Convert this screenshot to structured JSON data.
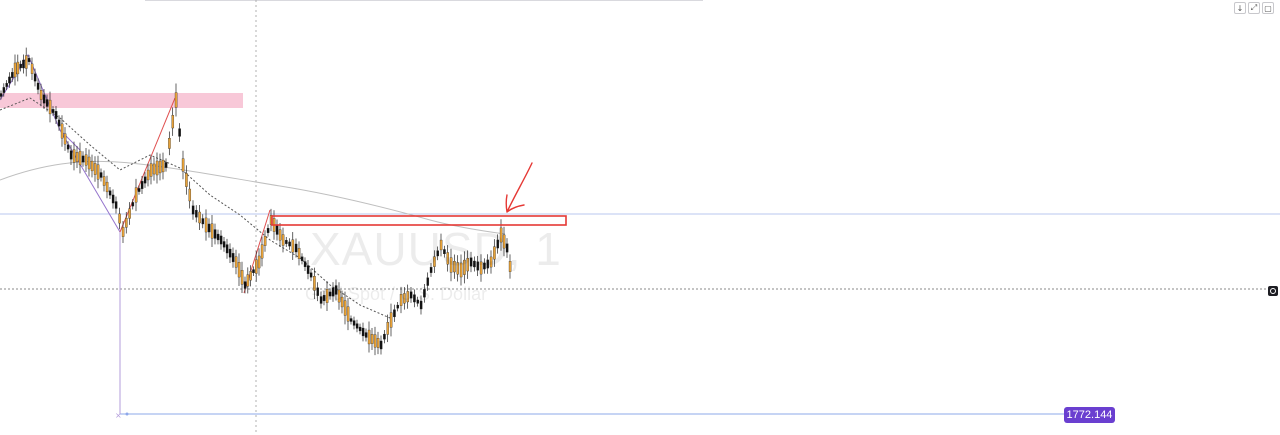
{
  "chart": {
    "symbol_watermark": "XAUUSD, 1",
    "description_watermark": "Gold Spot / U.S. Dollar",
    "price_label": "1772.144",
    "colors": {
      "bull_candle": "#e6a23a",
      "bear_candle": "#111111",
      "supply_zone": "#f7c6d6",
      "resistance_box": "#e53935",
      "trend_line": "#e05050",
      "zigzag": "#9575cd",
      "moving_average": "#bdbdbd",
      "horizontal_line": "#9fb4e6",
      "price_badge": "#6a3fd0"
    }
  },
  "window_controls": {
    "down_icon": "↓",
    "expand_icon": "⤢",
    "window_icon": "▢"
  }
}
